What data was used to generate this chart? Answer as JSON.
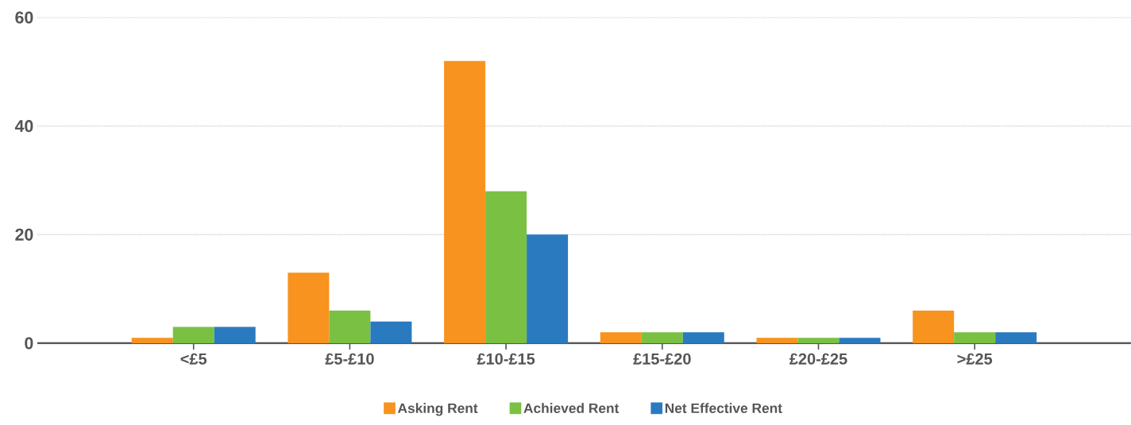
{
  "chart_data": {
    "type": "bar",
    "categories": [
      "<£5",
      "£5-£10",
      "£10-£15",
      "£15-£20",
      "£20-£25",
      ">£25"
    ],
    "series": [
      {
        "name": "Asking Rent",
        "color": "#f7931e",
        "values": [
          1,
          13,
          52,
          2,
          1,
          6
        ]
      },
      {
        "name": "Achieved Rent",
        "color": "#7ac143",
        "values": [
          3,
          6,
          28,
          2,
          1,
          2
        ]
      },
      {
        "name": "Net Effective Rent",
        "color": "#2a7ac0",
        "values": [
          3,
          4,
          20,
          2,
          1,
          2
        ]
      }
    ],
    "ylim": [
      0,
      60
    ],
    "yticks": [
      0,
      20,
      40,
      60
    ],
    "grid": "y",
    "legend": "bottom"
  }
}
